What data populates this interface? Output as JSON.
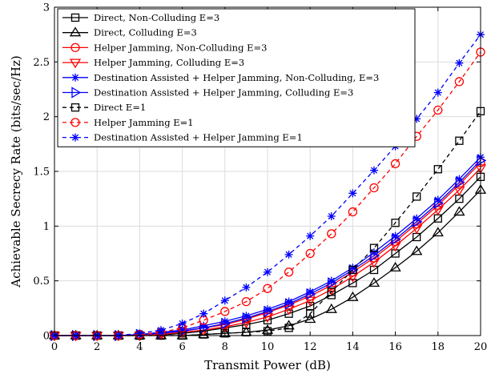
{
  "chart_data": {
    "type": "line",
    "xlabel": "Transmit Power (dB)",
    "ylabel": "Achievable Secrecy Rate (bits/sec/Hz)",
    "xlim": [
      0,
      20
    ],
    "ylim": [
      0,
      3
    ],
    "xticks": [
      0,
      2,
      4,
      6,
      8,
      10,
      12,
      14,
      16,
      18,
      20
    ],
    "yticks": [
      0,
      0.5,
      1,
      1.5,
      2,
      2.5,
      3
    ],
    "xtick_labels": [
      "0",
      "2",
      "4",
      "6",
      "8",
      "10",
      "12",
      "14",
      "16",
      "18",
      "20"
    ],
    "ytick_labels": [
      "0",
      "0.5",
      "1",
      "1.5",
      "2",
      "2.5",
      "3"
    ],
    "grid": true,
    "legend_position": "top-left",
    "x": [
      0,
      1,
      2,
      3,
      4,
      5,
      6,
      7,
      8,
      9,
      10,
      11,
      12,
      13,
      14,
      15,
      16,
      17,
      18,
      19,
      20
    ],
    "series": [
      {
        "name": "Direct, Non-Colluding E=3",
        "color": "#000000",
        "dash": "solid",
        "marker": "square",
        "values": [
          0,
          0,
          0,
          0,
          0,
          0.005,
          0.02,
          0.04,
          0.07,
          0.1,
          0.14,
          0.2,
          0.27,
          0.37,
          0.48,
          0.6,
          0.75,
          0.9,
          1.07,
          1.25,
          1.45
        ]
      },
      {
        "name": "Direct, Colluding E=3",
        "color": "#000000",
        "dash": "solid",
        "marker": "triangle-up",
        "values": [
          0,
          0,
          0,
          0,
          0,
          0,
          0,
          0.01,
          0.02,
          0.03,
          0.05,
          0.09,
          0.15,
          0.24,
          0.35,
          0.48,
          0.62,
          0.77,
          0.94,
          1.13,
          1.33
        ]
      },
      {
        "name": "Helper Jamming, Non-Colluding E=3",
        "color": "#ff0000",
        "dash": "solid",
        "marker": "circle",
        "values": [
          0,
          0,
          0,
          0,
          0.01,
          0.02,
          0.04,
          0.07,
          0.1,
          0.15,
          0.21,
          0.28,
          0.36,
          0.46,
          0.58,
          0.71,
          0.86,
          1.02,
          1.19,
          1.38,
          1.58
        ]
      },
      {
        "name": "Helper Jamming, Colluding E=3",
        "color": "#ff0000",
        "dash": "solid",
        "marker": "triangle-down",
        "values": [
          0,
          0,
          0,
          0,
          0,
          0.01,
          0.03,
          0.05,
          0.08,
          0.12,
          0.17,
          0.24,
          0.32,
          0.42,
          0.54,
          0.67,
          0.82,
          0.98,
          1.15,
          1.33,
          1.53
        ]
      },
      {
        "name": "Destination Assisted + Helper Jamming, Non-Colluding, E=3",
        "color": "#0000ff",
        "dash": "solid",
        "marker": "asterisk",
        "values": [
          0,
          0,
          0,
          0,
          0.01,
          0.03,
          0.05,
          0.09,
          0.13,
          0.18,
          0.24,
          0.31,
          0.4,
          0.5,
          0.62,
          0.76,
          0.91,
          1.07,
          1.24,
          1.43,
          1.63
        ]
      },
      {
        "name": "Destination Assisted + Helper Jamming, Colluding E=3",
        "color": "#0000ff",
        "dash": "solid",
        "marker": "triangle-right",
        "values": [
          0,
          0,
          0,
          0,
          0.01,
          0.02,
          0.04,
          0.07,
          0.11,
          0.16,
          0.22,
          0.29,
          0.38,
          0.48,
          0.6,
          0.73,
          0.88,
          1.04,
          1.21,
          1.4,
          1.6
        ]
      },
      {
        "name": "Direct E=1",
        "color": "#000000",
        "dash": "dashed",
        "marker": "square",
        "values": [
          0,
          0,
          0,
          0,
          0,
          0,
          0,
          0.01,
          0.02,
          0.03,
          0.04,
          0.07,
          0.2,
          0.4,
          0.6,
          0.8,
          1.03,
          1.27,
          1.52,
          1.78,
          2.05
        ]
      },
      {
        "name": "Helper Jamming E=1",
        "color": "#ff0000",
        "dash": "dashed",
        "marker": "circle",
        "values": [
          0,
          0,
          0,
          0,
          0.01,
          0.03,
          0.07,
          0.14,
          0.22,
          0.31,
          0.43,
          0.58,
          0.75,
          0.93,
          1.13,
          1.35,
          1.57,
          1.82,
          2.06,
          2.32,
          2.59
        ]
      },
      {
        "name": "Destination Assisted + Helper Jamming E=1",
        "color": "#0000ff",
        "dash": "dashed",
        "marker": "asterisk",
        "values": [
          0,
          0,
          0,
          0,
          0.02,
          0.05,
          0.11,
          0.2,
          0.32,
          0.44,
          0.58,
          0.74,
          0.91,
          1.09,
          1.3,
          1.51,
          1.73,
          1.98,
          2.22,
          2.49,
          2.75
        ]
      }
    ]
  }
}
